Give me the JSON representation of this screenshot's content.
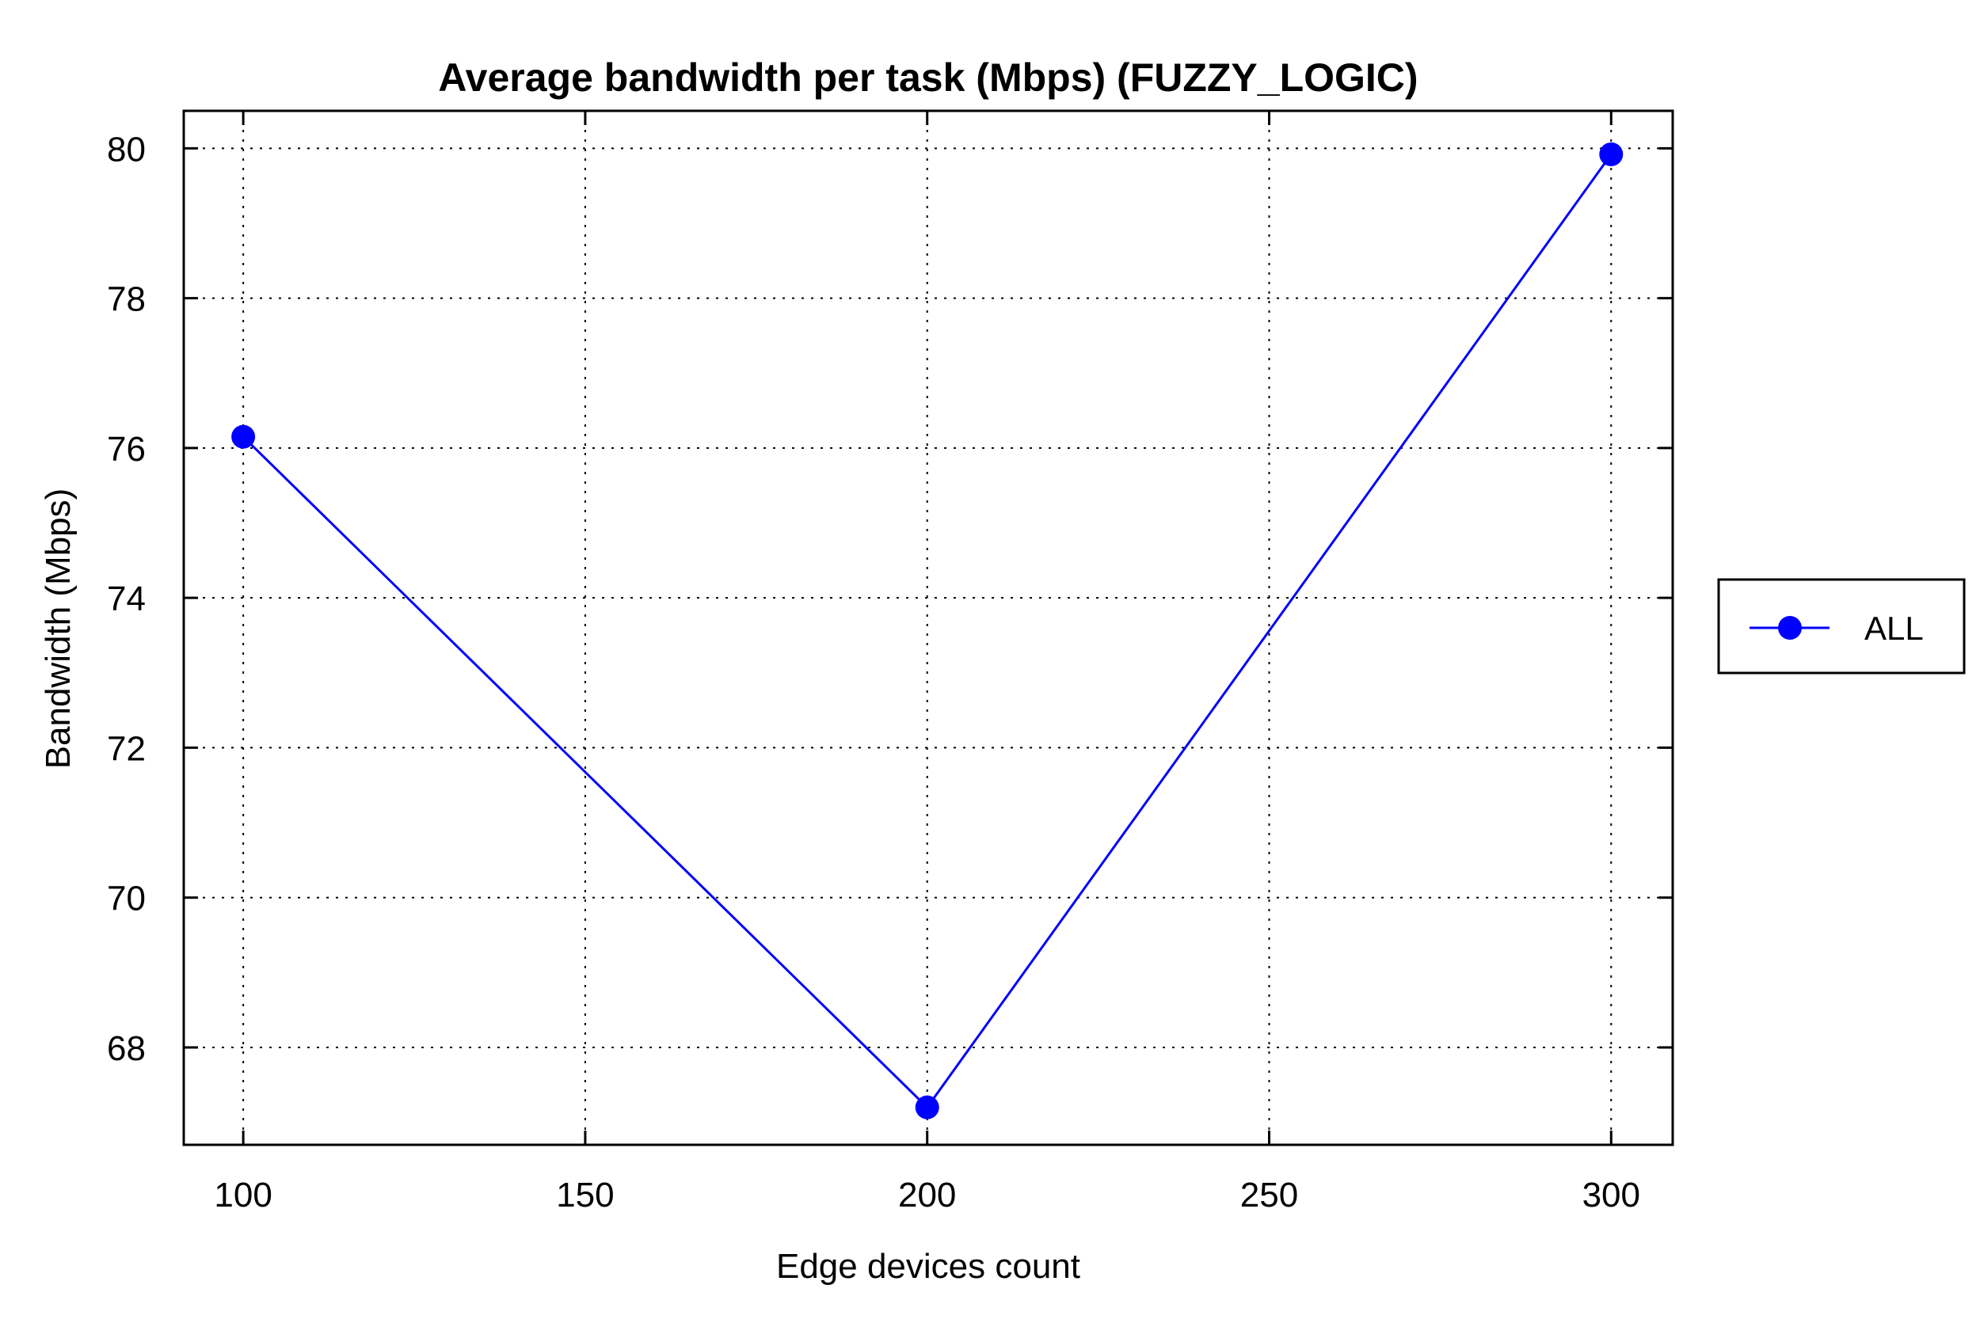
{
  "chart_data": {
    "type": "line",
    "title": "Average bandwidth per task (Mbps) (FUZZY_LOGIC)",
    "xlabel": "Edge devices count",
    "ylabel": "Bandwidth (Mbps)",
    "x": [
      100,
      200,
      300
    ],
    "xlim": [
      91.3,
      309
    ],
    "ylim": [
      66.7,
      80.5
    ],
    "xticks": [
      100,
      150,
      200,
      250,
      300
    ],
    "yticks": [
      68,
      70,
      72,
      74,
      76,
      78,
      80
    ],
    "grid": true,
    "legend_position": "right",
    "series": [
      {
        "name": "ALL",
        "values": [
          76.15,
          67.2,
          79.92
        ],
        "color": "#0000ff",
        "marker": "circle"
      }
    ]
  }
}
